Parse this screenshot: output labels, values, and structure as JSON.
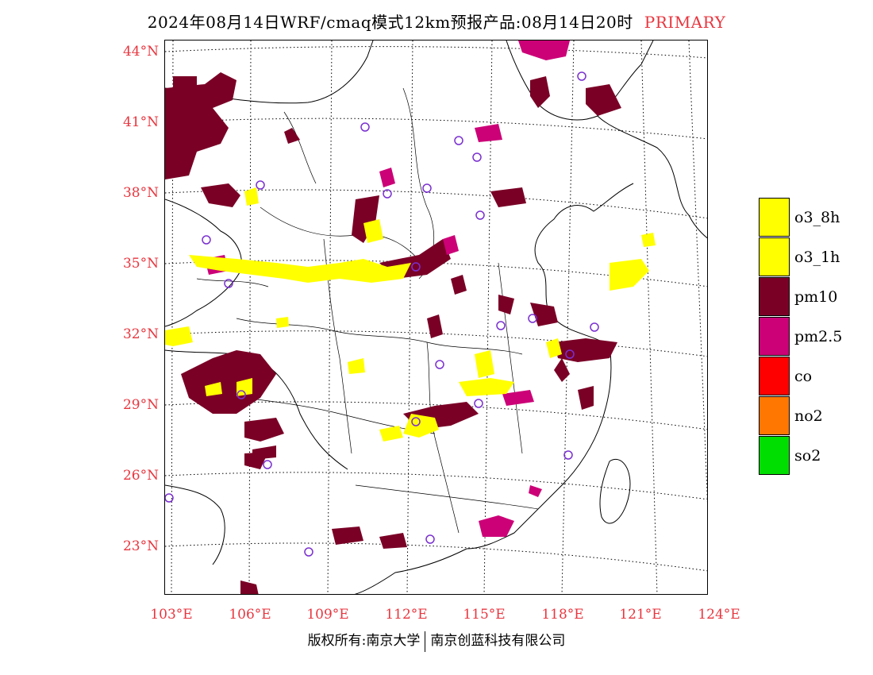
{
  "header": {
    "title": "2024年08月14日WRF/cmaq模式12km预报产品:08月14日20时",
    "tag": "PRIMARY"
  },
  "axes": {
    "lat_labels": [
      "44°N",
      "41°N",
      "38°N",
      "35°N",
      "32°N",
      "29°N",
      "26°N",
      "23°N"
    ],
    "lon_labels": [
      "103°E",
      "106°E",
      "109°E",
      "112°E",
      "115°E",
      "118°E",
      "121°E",
      "124°E"
    ]
  },
  "legend": {
    "items": [
      {
        "label": "o3_8h",
        "color": "#ffff00"
      },
      {
        "label": "o3_1h",
        "color": "#ffff00"
      },
      {
        "label": "pm10",
        "color": "#7a0026"
      },
      {
        "label": "pm2.5",
        "color": "#cc0077"
      },
      {
        "label": "co",
        "color": "#ff0000"
      },
      {
        "label": "no2",
        "color": "#ff7700"
      },
      {
        "label": "so2",
        "color": "#00dd00"
      }
    ]
  },
  "footer": {
    "left": "版权所有:南京大学",
    "right": "南京创蓝科技有限公司"
  },
  "colors": {
    "axis_label": "#e8363f",
    "station_marker": "#7a30d0"
  }
}
